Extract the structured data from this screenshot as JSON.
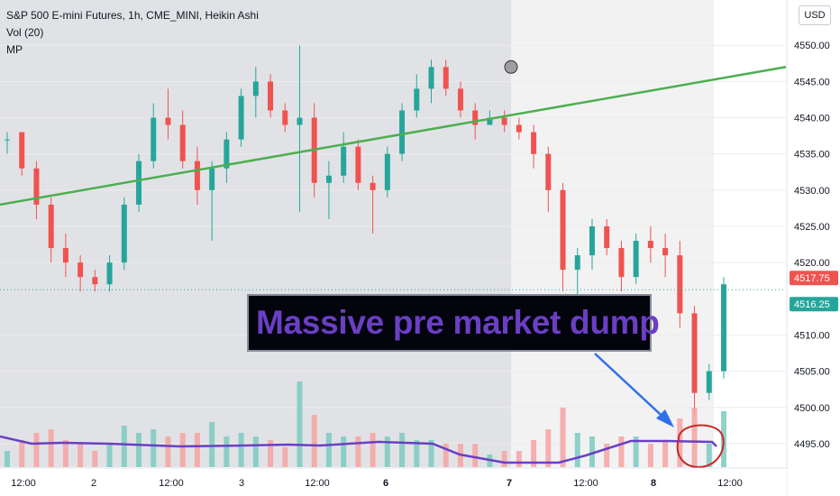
{
  "header": {
    "title": "S&P 500 E-mini Futures, 1h, CME_MINI, Heikin Ashi",
    "vol_label": "Vol (20)",
    "mp_label": "MP"
  },
  "currency_label": "USD",
  "annotation_text": "Massive pre market dump",
  "price_labels": {
    "upper": "4517.75",
    "lower": "4516.25"
  },
  "colors": {
    "bull": "#26a69a",
    "bear": "#ef5350",
    "trendline": "#4caf50",
    "volume_profile": "#6a3fc4",
    "arrow": "#2f6fe8",
    "circle": "#c62828",
    "annotation_bg": "#04040c",
    "annotation_text": "#6a3fc4",
    "session_shade": "#e1e2e6"
  },
  "chart_data": {
    "type": "candlestick",
    "title": "S&P 500 E-mini Futures, 1h, CME_MINI, Heikin Ashi",
    "y_ticks": [
      "4495.00",
      "4500.00",
      "4505.00",
      "4510.00",
      "4520.00",
      "4525.00",
      "4530.00",
      "4535.00",
      "4540.00",
      "4545.00",
      "4550.00"
    ],
    "ylim": [
      4492,
      4556
    ],
    "x_ticks": [
      "12:00",
      "2",
      "12:00",
      "3",
      "12:00",
      "6",
      "7",
      "12:00",
      "8",
      "12:00"
    ],
    "candles": [
      [
        4537,
        4538,
        4535,
        4537
      ],
      [
        4538,
        4538,
        4532,
        4533
      ],
      [
        4533,
        4534,
        4526,
        4528
      ],
      [
        4528,
        4529,
        4520,
        4522
      ],
      [
        4522,
        4524,
        4518,
        4520
      ],
      [
        4520,
        4521,
        4516,
        4518
      ],
      [
        4518,
        4519,
        4516,
        4517
      ],
      [
        4517,
        4521,
        4516,
        4520
      ],
      [
        4520,
        4529,
        4519,
        4528
      ],
      [
        4528,
        4535,
        4527,
        4534
      ],
      [
        4534,
        4542,
        4533,
        4540
      ],
      [
        4540,
        4544,
        4537,
        4539
      ],
      [
        4539,
        4541,
        4533,
        4534
      ],
      [
        4534,
        4536,
        4528,
        4530
      ],
      [
        4530,
        4534,
        4523,
        4533
      ],
      [
        4533,
        4538,
        4531,
        4537
      ],
      [
        4537,
        4544,
        4536,
        4543
      ],
      [
        4543,
        4547,
        4540,
        4545
      ],
      [
        4545,
        4546,
        4540,
        4541
      ],
      [
        4541,
        4542,
        4538,
        4539
      ],
      [
        4539,
        4550,
        4527,
        4540
      ],
      [
        4540,
        4542,
        4529,
        4531
      ],
      [
        4531,
        4534,
        4526,
        4532
      ],
      [
        4532,
        4538,
        4531,
        4536
      ],
      [
        4536,
        4537,
        4530,
        4531
      ],
      [
        4531,
        4532,
        4524,
        4530
      ],
      [
        4530,
        4536,
        4529,
        4535
      ],
      [
        4535,
        4542,
        4534,
        4541
      ],
      [
        4541,
        4546,
        4540,
        4544
      ],
      [
        4544,
        4548,
        4542,
        4547
      ],
      [
        4547,
        4548,
        4543,
        4544
      ],
      [
        4544,
        4545,
        4540,
        4541
      ],
      [
        4541,
        4542,
        4537,
        4539
      ],
      [
        4539,
        4541,
        4539,
        4540
      ],
      [
        4540,
        4541,
        4538,
        4539
      ],
      [
        4539,
        4540,
        4537,
        4538
      ],
      [
        4538,
        4539,
        4533,
        4535
      ],
      [
        4535,
        4536,
        4527,
        4530
      ],
      [
        4530,
        4531,
        4516,
        4519
      ],
      [
        4519,
        4522,
        4514,
        4521
      ],
      [
        4521,
        4526,
        4519,
        4525
      ],
      [
        4525,
        4526,
        4521,
        4522
      ],
      [
        4522,
        4523,
        4516,
        4518
      ],
      [
        4518,
        4524,
        4517,
        4523
      ],
      [
        4523,
        4525,
        4520,
        4522
      ],
      [
        4522,
        4524,
        4518,
        4521
      ],
      [
        4521,
        4523,
        4511,
        4513
      ],
      [
        4513,
        4514,
        4499,
        4502
      ],
      [
        4502,
        4506,
        4501,
        4505
      ],
      [
        4505,
        4518,
        4504,
        4517
      ]
    ],
    "trendline": {
      "start": [
        0,
        4528
      ],
      "end": [
        1,
        4547
      ]
    },
    "marker_price": 4547,
    "current_price": 4516.25
  }
}
